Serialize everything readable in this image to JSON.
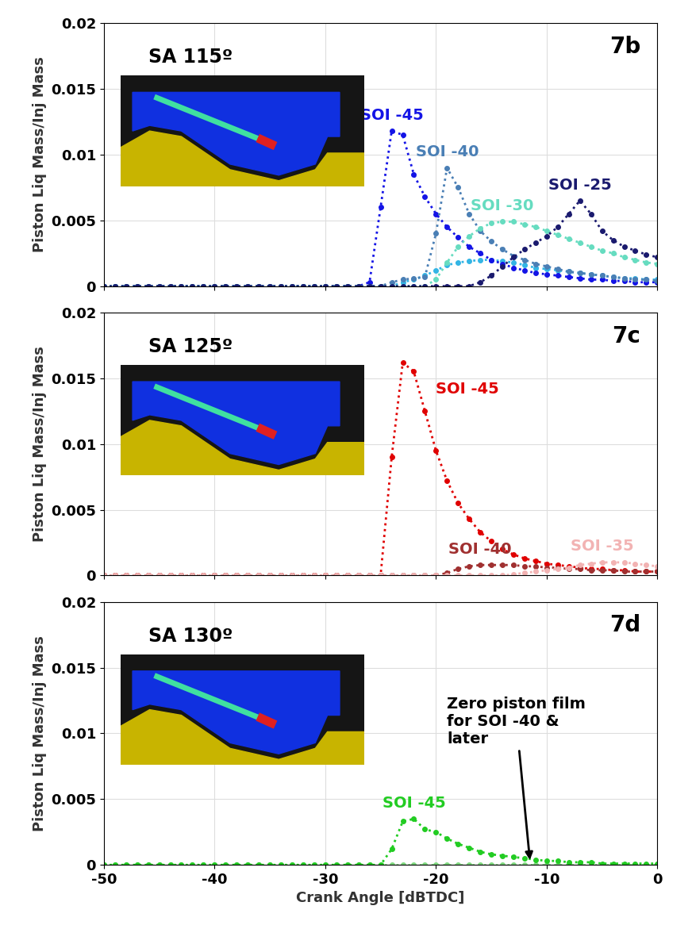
{
  "chart_data": [
    {
      "type": "line",
      "title": "SA 115º",
      "panel_label": "7b",
      "ylabel": "Piston Liq Mass/Inj Mass",
      "x": [
        -50,
        -49,
        -48,
        -47,
        -46,
        -45,
        -44,
        -43,
        -42,
        -41,
        -40,
        -39,
        -38,
        -37,
        -36,
        -35,
        -34,
        -33,
        -32,
        -31,
        -30,
        -29,
        -28,
        -27,
        -26,
        -25,
        -24,
        -23,
        -22,
        -21,
        -20,
        -19,
        -18,
        -17,
        -16,
        -15,
        -14,
        -13,
        -12,
        -11,
        -10,
        -9,
        -8,
        -7,
        -6,
        -5,
        -4,
        -3,
        -2,
        -1,
        0
      ],
      "xlim": [
        -50,
        0
      ],
      "ylim": [
        0,
        0.02
      ],
      "xticks": [
        -50,
        -40,
        -30,
        -20,
        -10,
        0
      ],
      "yticks": [
        0,
        0.005,
        0.01,
        0.015,
        0.02
      ],
      "grid": true,
      "tick_labels": "y",
      "series": [
        {
          "color": "#33b5e5",
          "marker": "o",
          "line_style": "dotted",
          "values": [
            0,
            0,
            0,
            0,
            0,
            0,
            0,
            0,
            0,
            0,
            0,
            0,
            0,
            0,
            0,
            0,
            0,
            0,
            0,
            0,
            0,
            0,
            0,
            0,
            0,
            0,
            0,
            0.0003,
            0.0005,
            0.0008,
            0.0012,
            0.0016,
            0.0018,
            0.0019,
            0.002,
            0.002,
            0.0019,
            0.0018,
            0.0016,
            0.0014,
            0.0013,
            0.0012,
            0.0011,
            0.001,
            0.0009,
            0.0008,
            0.0007,
            0.0006,
            0.0006,
            0.0005,
            0.0005
          ]
        },
        {
          "name": "SOI -45",
          "color": "#1414e6",
          "marker": "o",
          "line_style": "dotted",
          "values": [
            0,
            0,
            0,
            0,
            0,
            0,
            0,
            0,
            0,
            0,
            0,
            0,
            0,
            0,
            0,
            0,
            0,
            0,
            0,
            0,
            0,
            0,
            0,
            0,
            0.0003,
            0.006,
            0.0118,
            0.0115,
            0.0085,
            0.0068,
            0.0055,
            0.0045,
            0.0037,
            0.003,
            0.0025,
            0.002,
            0.0017,
            0.0014,
            0.0012,
            0.001,
            0.0009,
            0.0008,
            0.0007,
            0.0006,
            0.0005,
            0.0005,
            0.0004,
            0.0004,
            0.0003,
            0.0003,
            0.0003
          ]
        },
        {
          "name": "SOI -40",
          "color": "#4a7fb5",
          "marker": "o",
          "line_style": "dotted",
          "values": [
            0,
            0,
            0,
            0,
            0,
            0,
            0,
            0,
            0,
            0,
            0,
            0,
            0,
            0,
            0,
            0,
            0,
            0,
            0,
            0,
            0,
            0,
            0,
            0,
            0,
            0,
            0.0003,
            0.0005,
            0.0006,
            0.0007,
            0.004,
            0.009,
            0.0075,
            0.0055,
            0.0042,
            0.0034,
            0.0028,
            0.0023,
            0.002,
            0.0017,
            0.0015,
            0.0013,
            0.0011,
            0.001,
            0.0009,
            0.0008,
            0.0007,
            0.0006,
            0.0005,
            0.0005,
            0.0004
          ]
        },
        {
          "name": "SOI -30",
          "color": "#66dcc0",
          "marker": "o",
          "line_style": "dotted",
          "values": [
            0,
            0,
            0,
            0,
            0,
            0,
            0,
            0,
            0,
            0,
            0,
            0,
            0,
            0,
            0,
            0,
            0,
            0,
            0,
            0,
            0,
            0,
            0,
            0,
            0,
            0,
            0,
            0,
            0,
            0,
            0.0005,
            0.0018,
            0.003,
            0.0038,
            0.0044,
            0.0048,
            0.0049,
            0.0049,
            0.0047,
            0.0045,
            0.0042,
            0.0039,
            0.0036,
            0.0033,
            0.003,
            0.0027,
            0.0025,
            0.0022,
            0.002,
            0.0018,
            0.0017
          ]
        },
        {
          "name": "SOI -25",
          "color": "#1a1a6e",
          "marker": "o",
          "line_style": "dotted",
          "values": [
            0,
            0,
            0,
            0,
            0,
            0,
            0,
            0,
            0,
            0,
            0,
            0,
            0,
            0,
            0,
            0,
            0,
            0,
            0,
            0,
            0,
            0,
            0,
            0,
            0,
            0,
            0,
            0,
            0,
            0,
            0,
            0,
            0,
            0,
            0.0003,
            0.0008,
            0.0015,
            0.0022,
            0.0028,
            0.0033,
            0.0038,
            0.0045,
            0.0055,
            0.0065,
            0.0055,
            0.0042,
            0.0035,
            0.003,
            0.0027,
            0.0024,
            0.0022
          ]
        }
      ]
    },
    {
      "type": "line",
      "title": "SA 125º",
      "panel_label": "7c",
      "ylabel": "Piston Liq Mass/Inj Mass",
      "x": [
        -50,
        -49,
        -48,
        -47,
        -46,
        -45,
        -44,
        -43,
        -42,
        -41,
        -40,
        -39,
        -38,
        -37,
        -36,
        -35,
        -34,
        -33,
        -32,
        -31,
        -30,
        -29,
        -28,
        -27,
        -26,
        -25,
        -24,
        -23,
        -22,
        -21,
        -20,
        -19,
        -18,
        -17,
        -16,
        -15,
        -14,
        -13,
        -12,
        -11,
        -10,
        -9,
        -8,
        -7,
        -6,
        -5,
        -4,
        -3,
        -2,
        -1,
        0
      ],
      "xlim": [
        -50,
        0
      ],
      "ylim": [
        0,
        0.02
      ],
      "xticks": [
        -50,
        -40,
        -30,
        -20,
        -10,
        0
      ],
      "yticks": [
        0,
        0.005,
        0.01,
        0.015,
        0.02
      ],
      "grid": true,
      "tick_labels": "y",
      "series": [
        {
          "name": "SOI -45",
          "color": "#e00000",
          "marker": "o",
          "line_style": "dotted",
          "values": [
            0,
            0,
            0,
            0,
            0,
            0,
            0,
            0,
            0,
            0,
            0,
            0,
            0,
            0,
            0,
            0,
            0,
            0,
            0,
            0,
            0,
            0,
            0,
            0,
            0,
            0,
            0.009,
            0.0162,
            0.0155,
            0.0125,
            0.0095,
            0.0072,
            0.0055,
            0.0043,
            0.0033,
            0.0026,
            0.002,
            0.0016,
            0.0013,
            0.0011,
            0.0009,
            0.0008,
            0.0007,
            0.0006,
            0.0005,
            0.0005,
            0.0004,
            0.0004,
            0.0003,
            0.0003,
            0.0003
          ]
        },
        {
          "name": "SOI -40",
          "color": "#a03030",
          "marker": "o",
          "line_style": "dotted",
          "values": [
            0,
            0,
            0,
            0,
            0,
            0,
            0,
            0,
            0,
            0,
            0,
            0,
            0,
            0,
            0,
            0,
            0,
            0,
            0,
            0,
            0,
            0,
            0,
            0,
            0,
            0,
            0,
            0,
            0,
            0,
            0,
            0.0002,
            0.0005,
            0.0007,
            0.0008,
            0.0008,
            0.0008,
            0.0008,
            0.0007,
            0.0007,
            0.0006,
            0.0006,
            0.0005,
            0.0005,
            0.0004,
            0.0004,
            0.0004,
            0.0003,
            0.0003,
            0.0003,
            0.0003
          ]
        },
        {
          "name": "SOI -35",
          "color": "#f2b3b3",
          "marker": "o",
          "line_style": "dotted",
          "values": [
            0,
            0,
            0,
            0,
            0,
            0,
            0,
            0,
            0,
            0,
            0,
            0,
            0,
            0,
            0,
            0,
            0,
            0,
            0,
            0,
            0,
            0,
            0,
            0,
            0,
            0,
            0,
            0,
            0,
            0,
            0,
            0,
            0,
            0,
            0,
            0,
            0,
            0.0001,
            0.0002,
            0.0003,
            0.0004,
            0.0005,
            0.0006,
            0.0008,
            0.0009,
            0.001,
            0.001,
            0.001,
            0.0009,
            0.0008,
            0.0007
          ]
        }
      ]
    },
    {
      "type": "line",
      "title": "SA 130º",
      "panel_label": "7d",
      "ylabel": "Piston Liq Mass/Inj Mass",
      "xlabel": "Crank Angle [dBTDC]",
      "x": [
        -50,
        -49,
        -48,
        -47,
        -46,
        -45,
        -44,
        -43,
        -42,
        -41,
        -40,
        -39,
        -38,
        -37,
        -36,
        -35,
        -34,
        -33,
        -32,
        -31,
        -30,
        -29,
        -28,
        -27,
        -26,
        -25,
        -24,
        -23,
        -22,
        -21,
        -20,
        -19,
        -18,
        -17,
        -16,
        -15,
        -14,
        -13,
        -12,
        -11,
        -10,
        -9,
        -8,
        -7,
        -6,
        -5,
        -4,
        -3,
        -2,
        -1,
        0
      ],
      "xlim": [
        -50,
        0
      ],
      "ylim": [
        0,
        0.02
      ],
      "xticks": [
        -50,
        -40,
        -30,
        -20,
        -10,
        0
      ],
      "yticks": [
        0,
        0.005,
        0.01,
        0.015,
        0.02
      ],
      "grid": true,
      "annotations": [
        {
          "text": "Zero piston film\nfor SOI -40 &\nlater",
          "x": -11.5,
          "y": 0.0002
        }
      ],
      "series": [
        {
          "color": "#7fd87f",
          "marker": "o",
          "line_style": "dotted",
          "values": [
            0,
            0,
            0,
            0,
            0,
            0,
            0,
            0,
            0,
            0,
            0,
            0,
            0,
            0,
            0,
            0,
            0,
            0,
            0,
            0,
            0,
            0,
            0,
            0,
            0,
            0,
            0,
            0,
            0,
            0,
            0,
            0,
            0,
            0,
            0,
            0,
            0,
            0,
            0,
            0,
            0,
            0,
            0,
            0,
            0,
            0,
            0,
            0,
            0,
            0,
            0
          ]
        },
        {
          "name": "SOI -45",
          "color": "#22cc22",
          "marker": "o",
          "line_style": "dotted",
          "values": [
            0,
            0,
            0,
            0,
            0,
            0,
            0,
            0,
            0,
            0,
            0,
            0,
            0,
            0,
            0,
            0,
            0,
            0,
            0,
            0,
            0,
            0,
            0,
            0,
            0,
            0,
            0.0012,
            0.0033,
            0.0035,
            0.0027,
            0.0025,
            0.002,
            0.0016,
            0.0013,
            0.001,
            0.0008,
            0.0007,
            0.0006,
            0.0005,
            0.0004,
            0.0003,
            0.0003,
            0.0002,
            0.0002,
            0.0002,
            0.0001,
            0.0001,
            0.0001,
            0.0001,
            0.0001,
            0.0001
          ]
        }
      ]
    }
  ]
}
